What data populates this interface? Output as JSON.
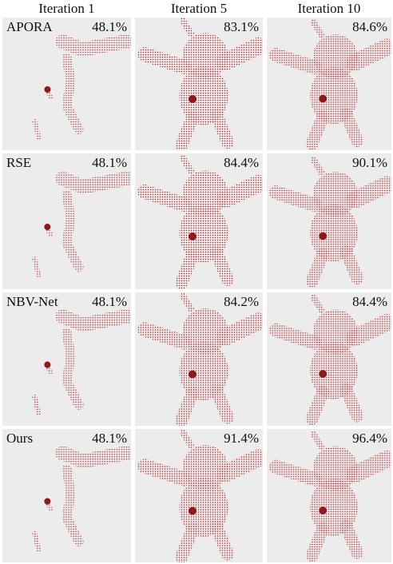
{
  "columns": [
    "Iteration 1",
    "Iteration 5",
    "Iteration 10"
  ],
  "rows": [
    {
      "method": "APORA",
      "values": [
        "48.1%",
        "83.1%",
        "84.6%"
      ]
    },
    {
      "method": "RSE",
      "values": [
        "48.1%",
        "84.4%",
        "90.1%"
      ]
    },
    {
      "method": "NBV-Net",
      "values": [
        "48.1%",
        "84.2%",
        "84.4%"
      ]
    },
    {
      "method": "Ours",
      "values": [
        "48.1%",
        "91.4%",
        "96.4%"
      ]
    }
  ]
}
